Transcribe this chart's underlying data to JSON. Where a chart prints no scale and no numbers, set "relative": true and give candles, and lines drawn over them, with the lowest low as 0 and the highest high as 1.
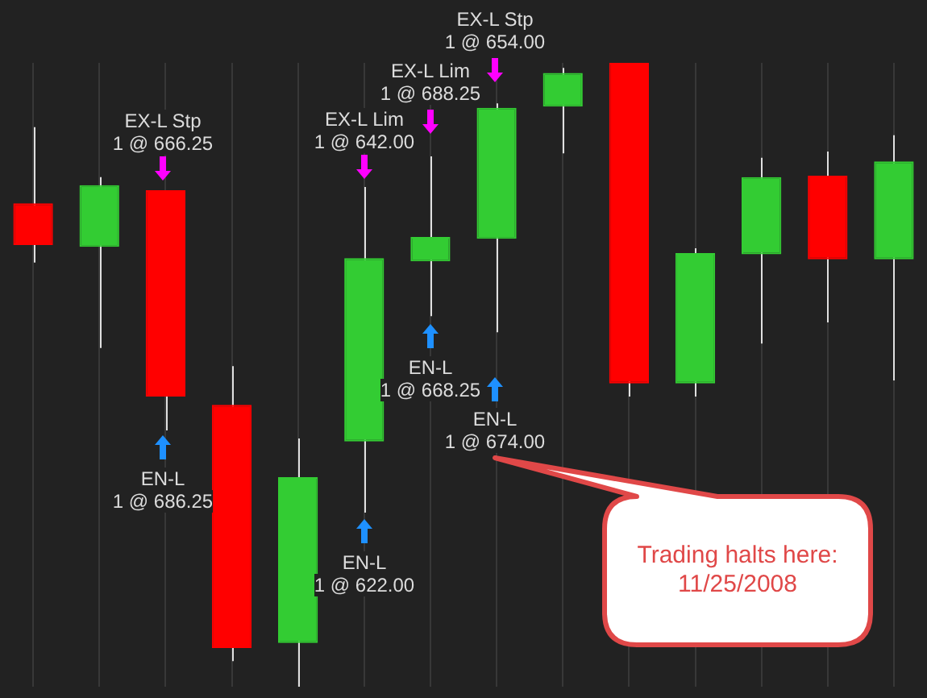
{
  "chart_data": {
    "type": "candlestick",
    "relative": true,
    "grid": "x",
    "categories": [
      null,
      null,
      null,
      null,
      null,
      null,
      null,
      null,
      null,
      null,
      null,
      null,
      null,
      null
    ],
    "ohlc": [
      [
        0.775,
        0.897,
        0.68,
        0.708
      ],
      [
        0.705,
        0.817,
        0.543,
        0.804
      ],
      [
        0.796,
        0.796,
        0.411,
        0.465
      ],
      [
        0.452,
        0.514,
        0.041,
        0.062
      ],
      [
        0.07,
        0.398,
        0,
        0.336
      ],
      [
        0.393,
        0.801,
        0.279,
        0.687
      ],
      [
        0.682,
        0.85,
        0.594,
        0.721
      ],
      [
        0.718,
        0.935,
        0.568,
        0.928
      ],
      [
        0.93,
        0.992,
        0.855,
        0.984
      ],
      [
        1,
        1,
        0.465,
        0.486
      ],
      [
        0.486,
        0.703,
        0.465,
        0.695
      ],
      [
        0.693,
        0.848,
        0.55,
        0.817
      ],
      [
        0.819,
        0.858,
        0.584,
        0.685
      ],
      [
        0.685,
        0.884,
        0.491,
        0.842
      ]
    ],
    "colors": [
      "#ff0000",
      "#33cc33",
      "#ff0000",
      "#ff0000",
      "#33cc33",
      "#33cc33",
      "#33cc33",
      "#33cc33",
      "#33cc33",
      "#ff0000",
      "#33cc33",
      "#33cc33",
      "#ff0000",
      "#33cc33"
    ],
    "annotations": [
      "EX-L Stp\n1 @ 666.25",
      "EN-L\n1 @ 686.25",
      "EX-L Lim\n1 @ 642.00",
      "EN-L\n1 @ 622.00",
      "EX-L Lim\n1 @ 688.25",
      "EN-L\n1 @ 668.25",
      "EX-L Stp\n1 @ 654.00",
      "EN-L\n1 @ 674.00",
      "Trading halts here:\n11/25/2008"
    ]
  }
}
